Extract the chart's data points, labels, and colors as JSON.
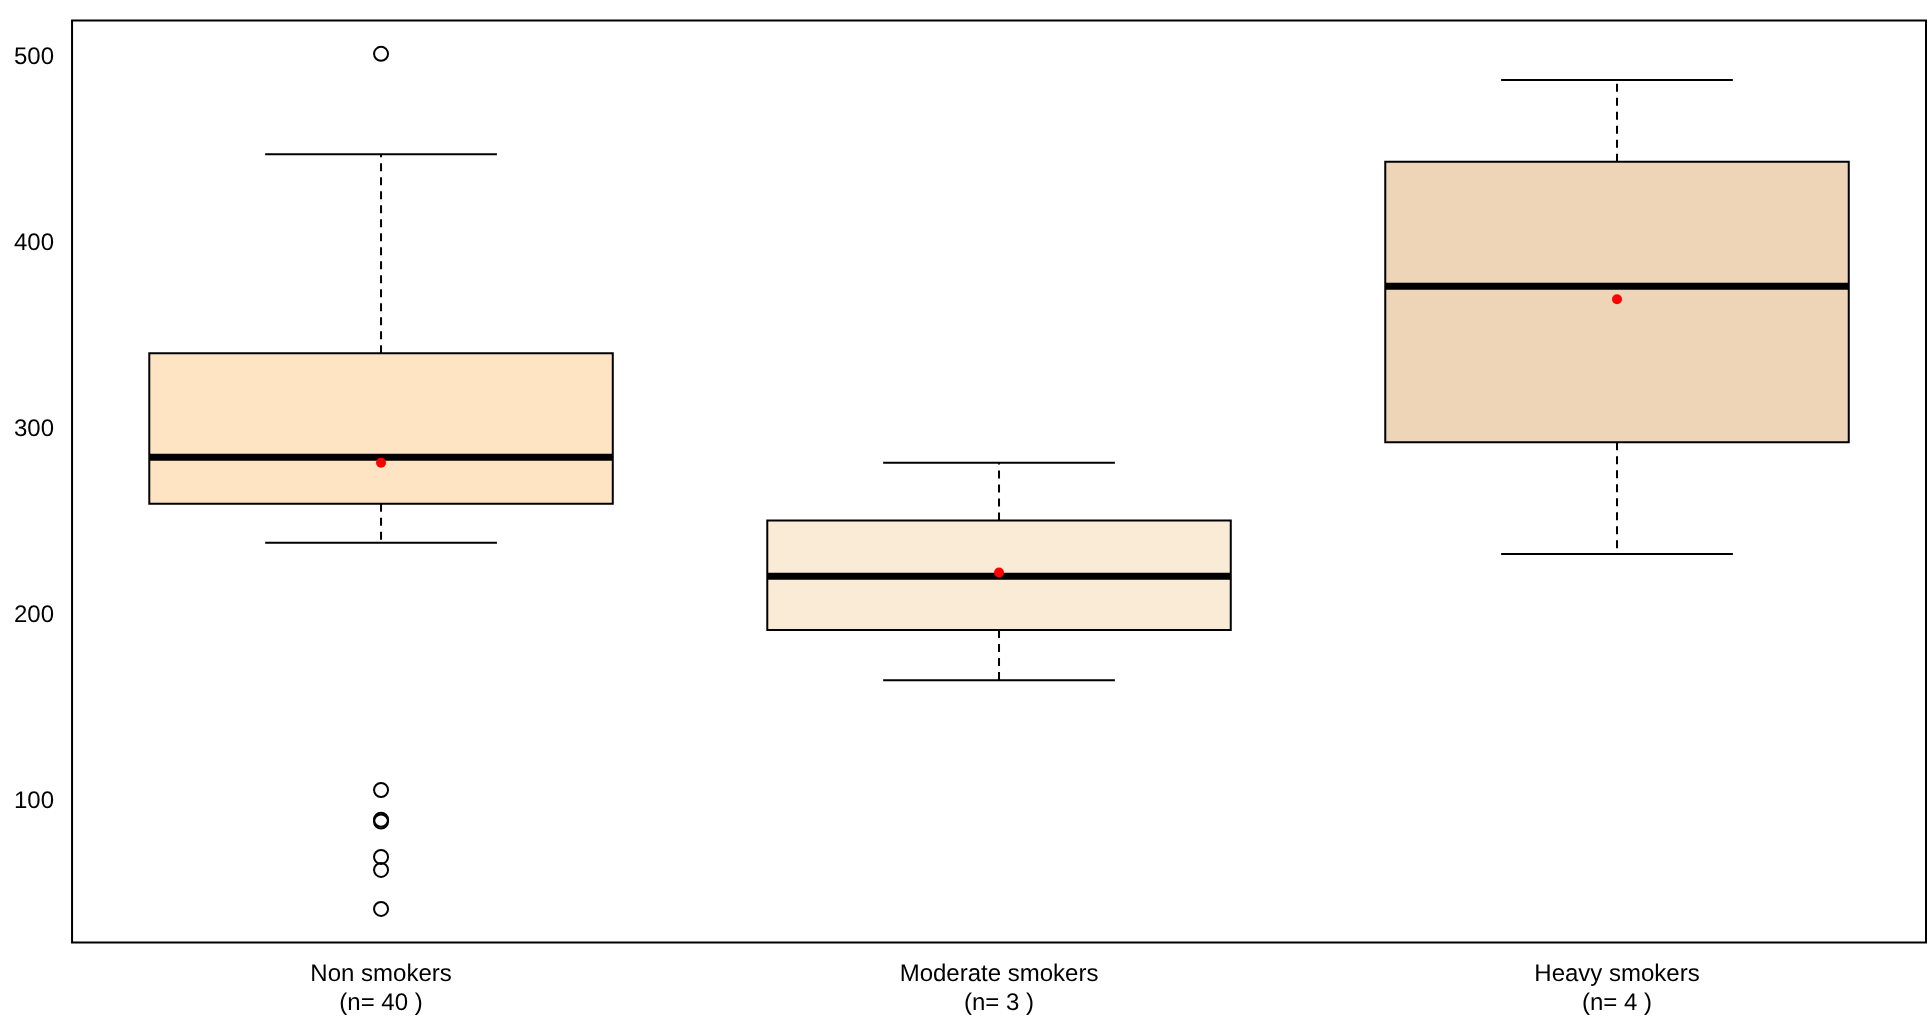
{
  "chart_data": {
    "type": "box",
    "categories": [
      "Non smokers\n(n= 40 )",
      "Moderate smokers\n(n= 3 )",
      "Heavy smokers\n(n= 4 )"
    ],
    "colors": [
      "#ffe4c4",
      "#faebd7",
      "#eed5b7"
    ],
    "boxes": [
      {
        "low": 239,
        "q1": 260,
        "median": 285,
        "q3": 341,
        "high": 448,
        "mean": 282,
        "outliers": [
          502,
          106,
          90,
          89,
          70,
          63,
          42
        ]
      },
      {
        "low": 165,
        "q1": 192,
        "median": 221,
        "q3": 251,
        "high": 282,
        "mean": 223
      },
      {
        "low": 233,
        "q1": 293,
        "median": 377,
        "q3": 444,
        "high": 488,
        "mean": 370
      }
    ],
    "ylim": [
      24,
      520
    ],
    "yticks": [
      100,
      200,
      300,
      400,
      500
    ],
    "grid": false,
    "legend": false
  }
}
